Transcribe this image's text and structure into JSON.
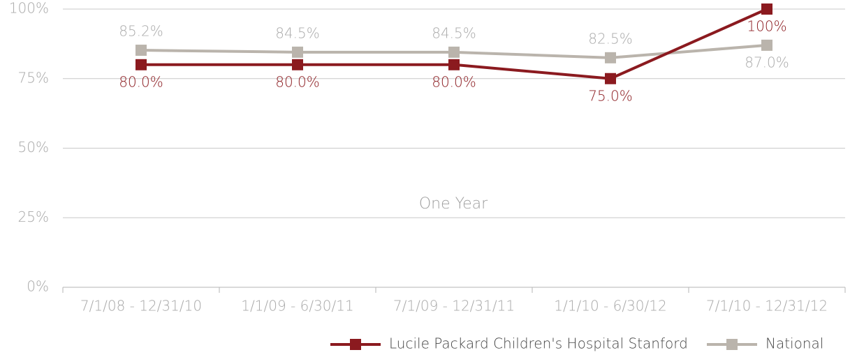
{
  "chart_data": {
    "type": "line",
    "annotation": "One Year",
    "categories": [
      "7/1/08 - 12/31/10",
      "1/1/09 - 6/30/11",
      "7/1/09 - 12/31/11",
      "1/1/10 - 6/30/12",
      "7/1/10 - 12/31/12"
    ],
    "series": [
      {
        "name": "Lucile Packard Children's Hospital Stanford",
        "color": "#8b1a1f",
        "values": [
          80,
          80,
          80,
          75,
          100
        ],
        "value_labels": [
          "80.0%",
          "80.0%",
          "80.0%",
          "75.0%",
          "100%"
        ]
      },
      {
        "name": "National",
        "color": "#bab4ac",
        "values": [
          85.2,
          84.5,
          84.5,
          82.5,
          87.0
        ],
        "value_labels": [
          "85.2%",
          "84.5%",
          "84.5%",
          "82.5%",
          "87.0%"
        ]
      }
    ],
    "ylim": [
      0,
      100
    ],
    "yticks": [
      {
        "value": 0,
        "label": "0%"
      },
      {
        "value": 25,
        "label": "25%"
      },
      {
        "value": 50,
        "label": "50%"
      },
      {
        "value": 75,
        "label": "75%"
      },
      {
        "value": 100,
        "label": "100%"
      }
    ],
    "grid": true,
    "legend": "bottom-right"
  }
}
